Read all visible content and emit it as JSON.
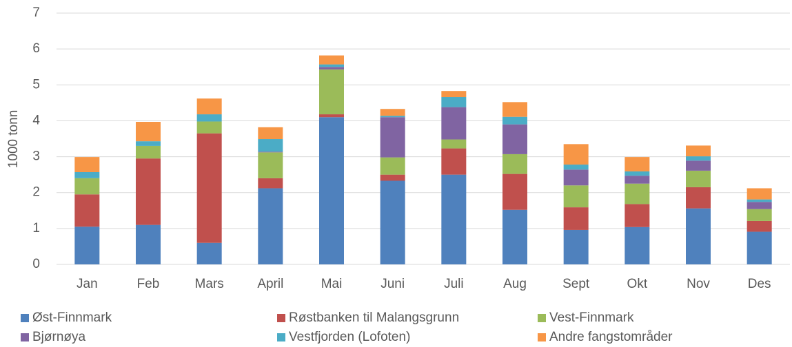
{
  "chart_data": {
    "type": "stacked_bar",
    "y_label": "1000 tonn",
    "categories": [
      "Jan",
      "Feb",
      "Mars",
      "April",
      "Mai",
      "Juni",
      "Juli",
      "Aug",
      "Sept",
      "Okt",
      "Nov",
      "Des"
    ],
    "series": [
      {
        "name": "Øst-Finnmark",
        "color": "#4f81bd",
        "values": [
          1.05,
          1.1,
          0.6,
          2.12,
          4.1,
          2.33,
          2.5,
          1.52,
          0.96,
          1.04,
          1.56,
          0.91
        ]
      },
      {
        "name": "Røstbanken til Malangsgrunn",
        "color": "#c0504d",
        "values": [
          0.9,
          1.85,
          3.05,
          0.28,
          0.08,
          0.17,
          0.73,
          1.0,
          0.63,
          0.64,
          0.59,
          0.3
        ]
      },
      {
        "name": "Vest-Finnmark",
        "color": "#9bbb59",
        "values": [
          0.45,
          0.35,
          0.33,
          0.72,
          1.25,
          0.48,
          0.25,
          0.55,
          0.61,
          0.57,
          0.46,
          0.33
        ]
      },
      {
        "name": "Bjørnøya",
        "color": "#8064a2",
        "values": [
          0,
          0,
          0,
          0.02,
          0.07,
          1.12,
          0.9,
          0.83,
          0.44,
          0.22,
          0.28,
          0.2
        ]
      },
      {
        "name": "Vestfjorden (Lofoten)",
        "color": "#4bacc6",
        "values": [
          0.17,
          0.13,
          0.2,
          0.35,
          0.07,
          0.04,
          0.28,
          0.21,
          0.14,
          0.12,
          0.12,
          0.07
        ]
      },
      {
        "name": "Andre fangstområder",
        "color": "#f79646",
        "values": [
          0.42,
          0.54,
          0.44,
          0.33,
          0.25,
          0.19,
          0.17,
          0.41,
          0.57,
          0.4,
          0.3,
          0.31
        ]
      }
    ],
    "ylim": [
      0,
      7
    ],
    "yticks": [
      0,
      1,
      2,
      3,
      4,
      5,
      6,
      7
    ],
    "grid": true,
    "legend": "bottom"
  }
}
